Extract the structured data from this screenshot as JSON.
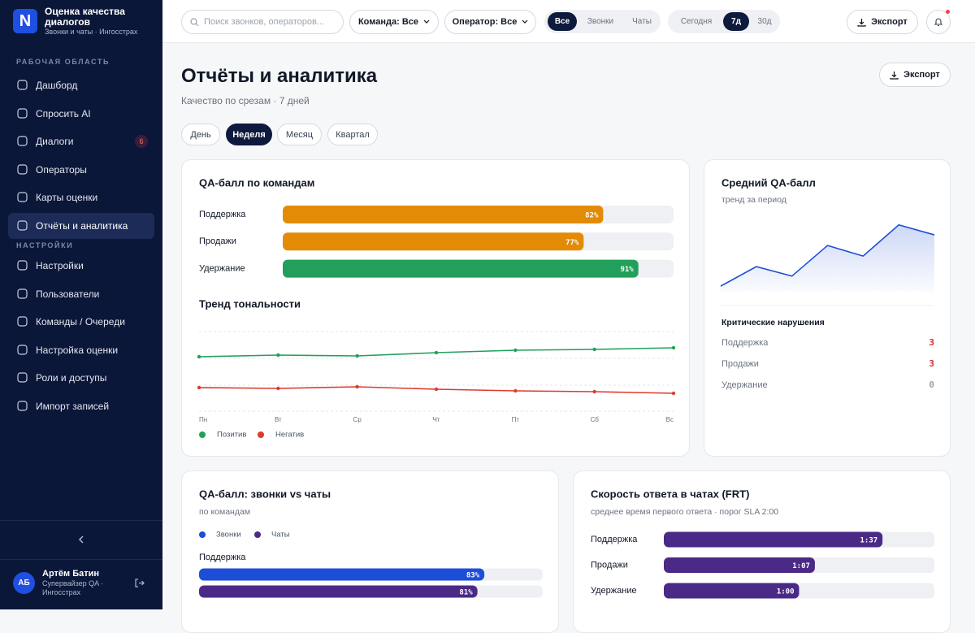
{
  "sidebar": {
    "brand": {
      "logo": "N",
      "title": "Оценка качества диалогов",
      "subtitle": "Звонки и чаты · Ингосстрах"
    },
    "section_work": "РАБОЧАЯ ОБЛАСТЬ",
    "nav_work": [
      {
        "label": "Дашборд"
      },
      {
        "label": "Спросить AI"
      },
      {
        "label": "Диалоги",
        "badge": "6"
      },
      {
        "label": "Операторы"
      },
      {
        "label": "Карты оценки"
      },
      {
        "label": "Отчёты и аналитика",
        "active": true
      }
    ],
    "section_settings": "НАСТРОЙКИ",
    "nav_settings": [
      {
        "label": "Настройки"
      },
      {
        "label": "Пользователи"
      },
      {
        "label": "Команды / Очереди"
      },
      {
        "label": "Настройка оценки"
      },
      {
        "label": "Роли и доступы"
      },
      {
        "label": "Импорт записей"
      }
    ],
    "user": {
      "initials": "АБ",
      "name": "Артём Батин",
      "role": "Супервайзер QA · Ингосстрах"
    }
  },
  "topbar": {
    "search_placeholder": "Поиск звонков, операторов...",
    "team_filter": "Команда: Все",
    "operator_filter": "Оператор: Все",
    "channel_tabs": [
      "Все",
      "Звонки",
      "Чаты"
    ],
    "channel_active": 0,
    "period_tabs": [
      "Сегодня",
      "7д",
      "30д"
    ],
    "period_active": 1,
    "export": "Экспорт"
  },
  "header": {
    "title": "Отчёты и аналитика",
    "subtitle": "Качество по срезам · 7 дней",
    "export": "Экспорт",
    "range_tabs": [
      "День",
      "Неделя",
      "Месяц",
      "Квартал"
    ],
    "range_active": 1
  },
  "qa_by_team": {
    "type": "bar",
    "title": "QA-балл по командам",
    "categories": [
      "Поддержка",
      "Продажи",
      "Удержание"
    ],
    "values": [
      82,
      77,
      91
    ],
    "value_labels": [
      "82%",
      "77%",
      "91%"
    ],
    "colors": [
      "#e38b06",
      "#e38b06",
      "#22a05b"
    ],
    "xlim": [
      0,
      100
    ]
  },
  "sentiment_trend": {
    "type": "line",
    "title": "Тренд тональности",
    "categories": [
      "Пн",
      "Вт",
      "Ср",
      "Чт",
      "Пт",
      "Сб",
      "Вс"
    ],
    "series": [
      {
        "name": "Позитив",
        "color": "#22a05b",
        "values": [
          67,
          69,
          68,
          72,
          75,
          76,
          78
        ]
      },
      {
        "name": "Негатив",
        "color": "#dc3b2f",
        "values": [
          29,
          28,
          30,
          27,
          25,
          24,
          22
        ]
      }
    ],
    "ylim": [
      0,
      100
    ]
  },
  "avg_qa": {
    "type": "area",
    "title": "Средний QA-балл",
    "subtitle": "тренд за период",
    "values": [
      79.0,
      82.5,
      80.8,
      86.3,
      84.4,
      90.0,
      88.2
    ],
    "color": "#1d4ed8",
    "ylim": [
      78,
      92
    ]
  },
  "violations": {
    "title": "Критические нарушения",
    "rows": [
      {
        "label": "Поддержка",
        "value": "3"
      },
      {
        "label": "Продажи",
        "value": "3"
      },
      {
        "label": "Удержание",
        "value": "0"
      }
    ]
  },
  "qa_channels": {
    "type": "bar",
    "title": "QA-балл: звонки vs чаты",
    "subtitle": "по командам",
    "categories": [
      "Поддержка"
    ],
    "series": [
      {
        "name": "Звонки",
        "color": "#1d4ed8",
        "values": [
          83
        ],
        "value_labels": [
          "83%"
        ]
      },
      {
        "name": "Чаты",
        "color": "#4a2a86",
        "values": [
          81
        ],
        "value_labels": [
          "81%"
        ]
      }
    ],
    "xlim": [
      0,
      100
    ]
  },
  "frt": {
    "type": "bar",
    "title": "Скорость ответа в чатах (FRT)",
    "subtitle": "среднее время первого ответа · порог SLA 2:00",
    "categories": [
      "Поддержка",
      "Продажи",
      "Удержание"
    ],
    "values": [
      97,
      67,
      60
    ],
    "value_labels": [
      "1:37",
      "1:07",
      "1:00"
    ],
    "color": "#4a2a86",
    "xlim": [
      0,
      120
    ]
  }
}
